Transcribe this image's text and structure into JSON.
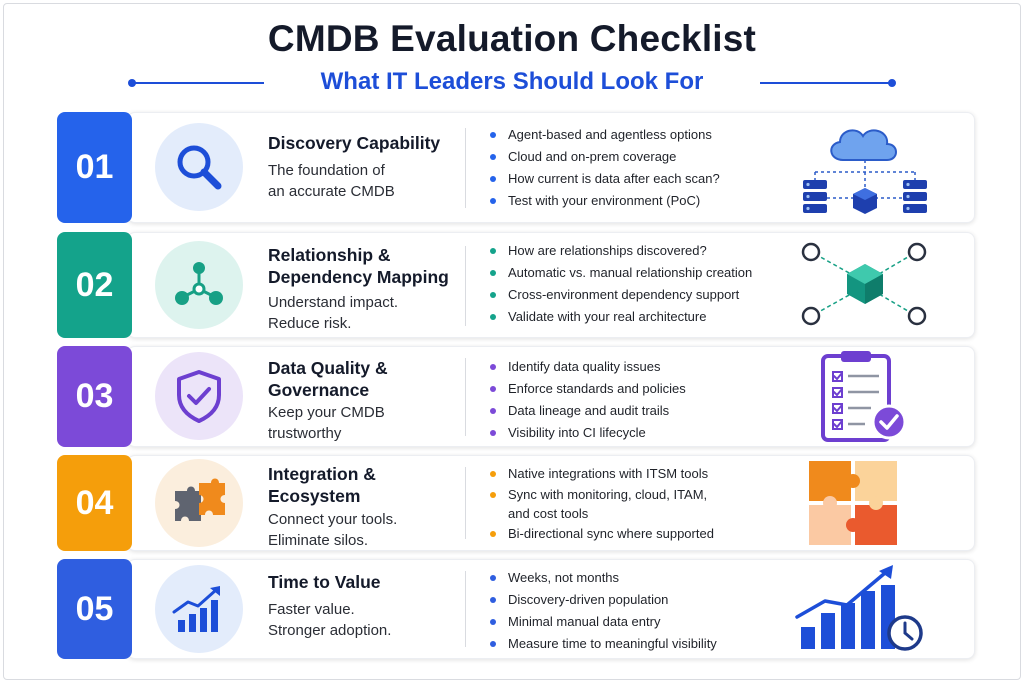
{
  "header": {
    "title": "CMDB Evaluation Checklist",
    "subtitle": "What IT Leaders Should Look For"
  },
  "colors": {
    "blue": "#2563eb",
    "teal": "#14a38b",
    "purple": "#7c4ad8",
    "orange": "#f59e0b",
    "navy": "#2f5ee0",
    "accent": "#1d4ed8"
  },
  "items": [
    {
      "number": "01",
      "icon": "magnifier-icon",
      "heading": [
        "Discovery Capability"
      ],
      "description": [
        "The foundation of",
        "an accurate CMDB"
      ],
      "bullets": [
        "Agent-based and agentless options",
        "Cloud and on-prem coverage",
        "How current is data after each scan?",
        "Test with your environment (PoC)"
      ],
      "illustration": "cloud-servers-icon"
    },
    {
      "number": "02",
      "icon": "network-nodes-icon",
      "heading": [
        "Relationship &",
        "Dependency Mapping"
      ],
      "description": [
        "Understand impact.",
        "Reduce risk."
      ],
      "bullets": [
        "How are relationships discovered?",
        "Automatic vs. manual relationship creation",
        "Cross-environment dependency support",
        "Validate with your real architecture"
      ],
      "illustration": "dependency-cube-icon"
    },
    {
      "number": "03",
      "icon": "shield-check-icon",
      "heading": [
        "Data Quality &",
        "Governance"
      ],
      "description": [
        "Keep your CMDB",
        "trustworthy"
      ],
      "bullets": [
        "Identify data quality issues",
        "Enforce standards and policies",
        "Data lineage and audit trails",
        "Visibility into CI lifecycle"
      ],
      "illustration": "clipboard-checklist-icon"
    },
    {
      "number": "04",
      "icon": "puzzle-pieces-icon",
      "heading": [
        "Integration &",
        "Ecosystem"
      ],
      "description": [
        "Connect your tools.",
        "Eliminate silos."
      ],
      "bullets": [
        "Native integrations with ITSM tools",
        "Sync with monitoring, cloud, ITAM, and cost tools",
        "Bi-directional sync where supported"
      ],
      "illustration": "puzzle-grid-icon"
    },
    {
      "number": "05",
      "icon": "growth-chart-icon",
      "heading": [
        "Time to Value"
      ],
      "description": [
        "Faster value.",
        "Stronger adoption."
      ],
      "bullets": [
        "Weeks, not months",
        "Discovery-driven population",
        "Minimal manual data entry",
        "Measure time to meaningful visibility"
      ],
      "illustration": "chart-clock-icon"
    }
  ]
}
